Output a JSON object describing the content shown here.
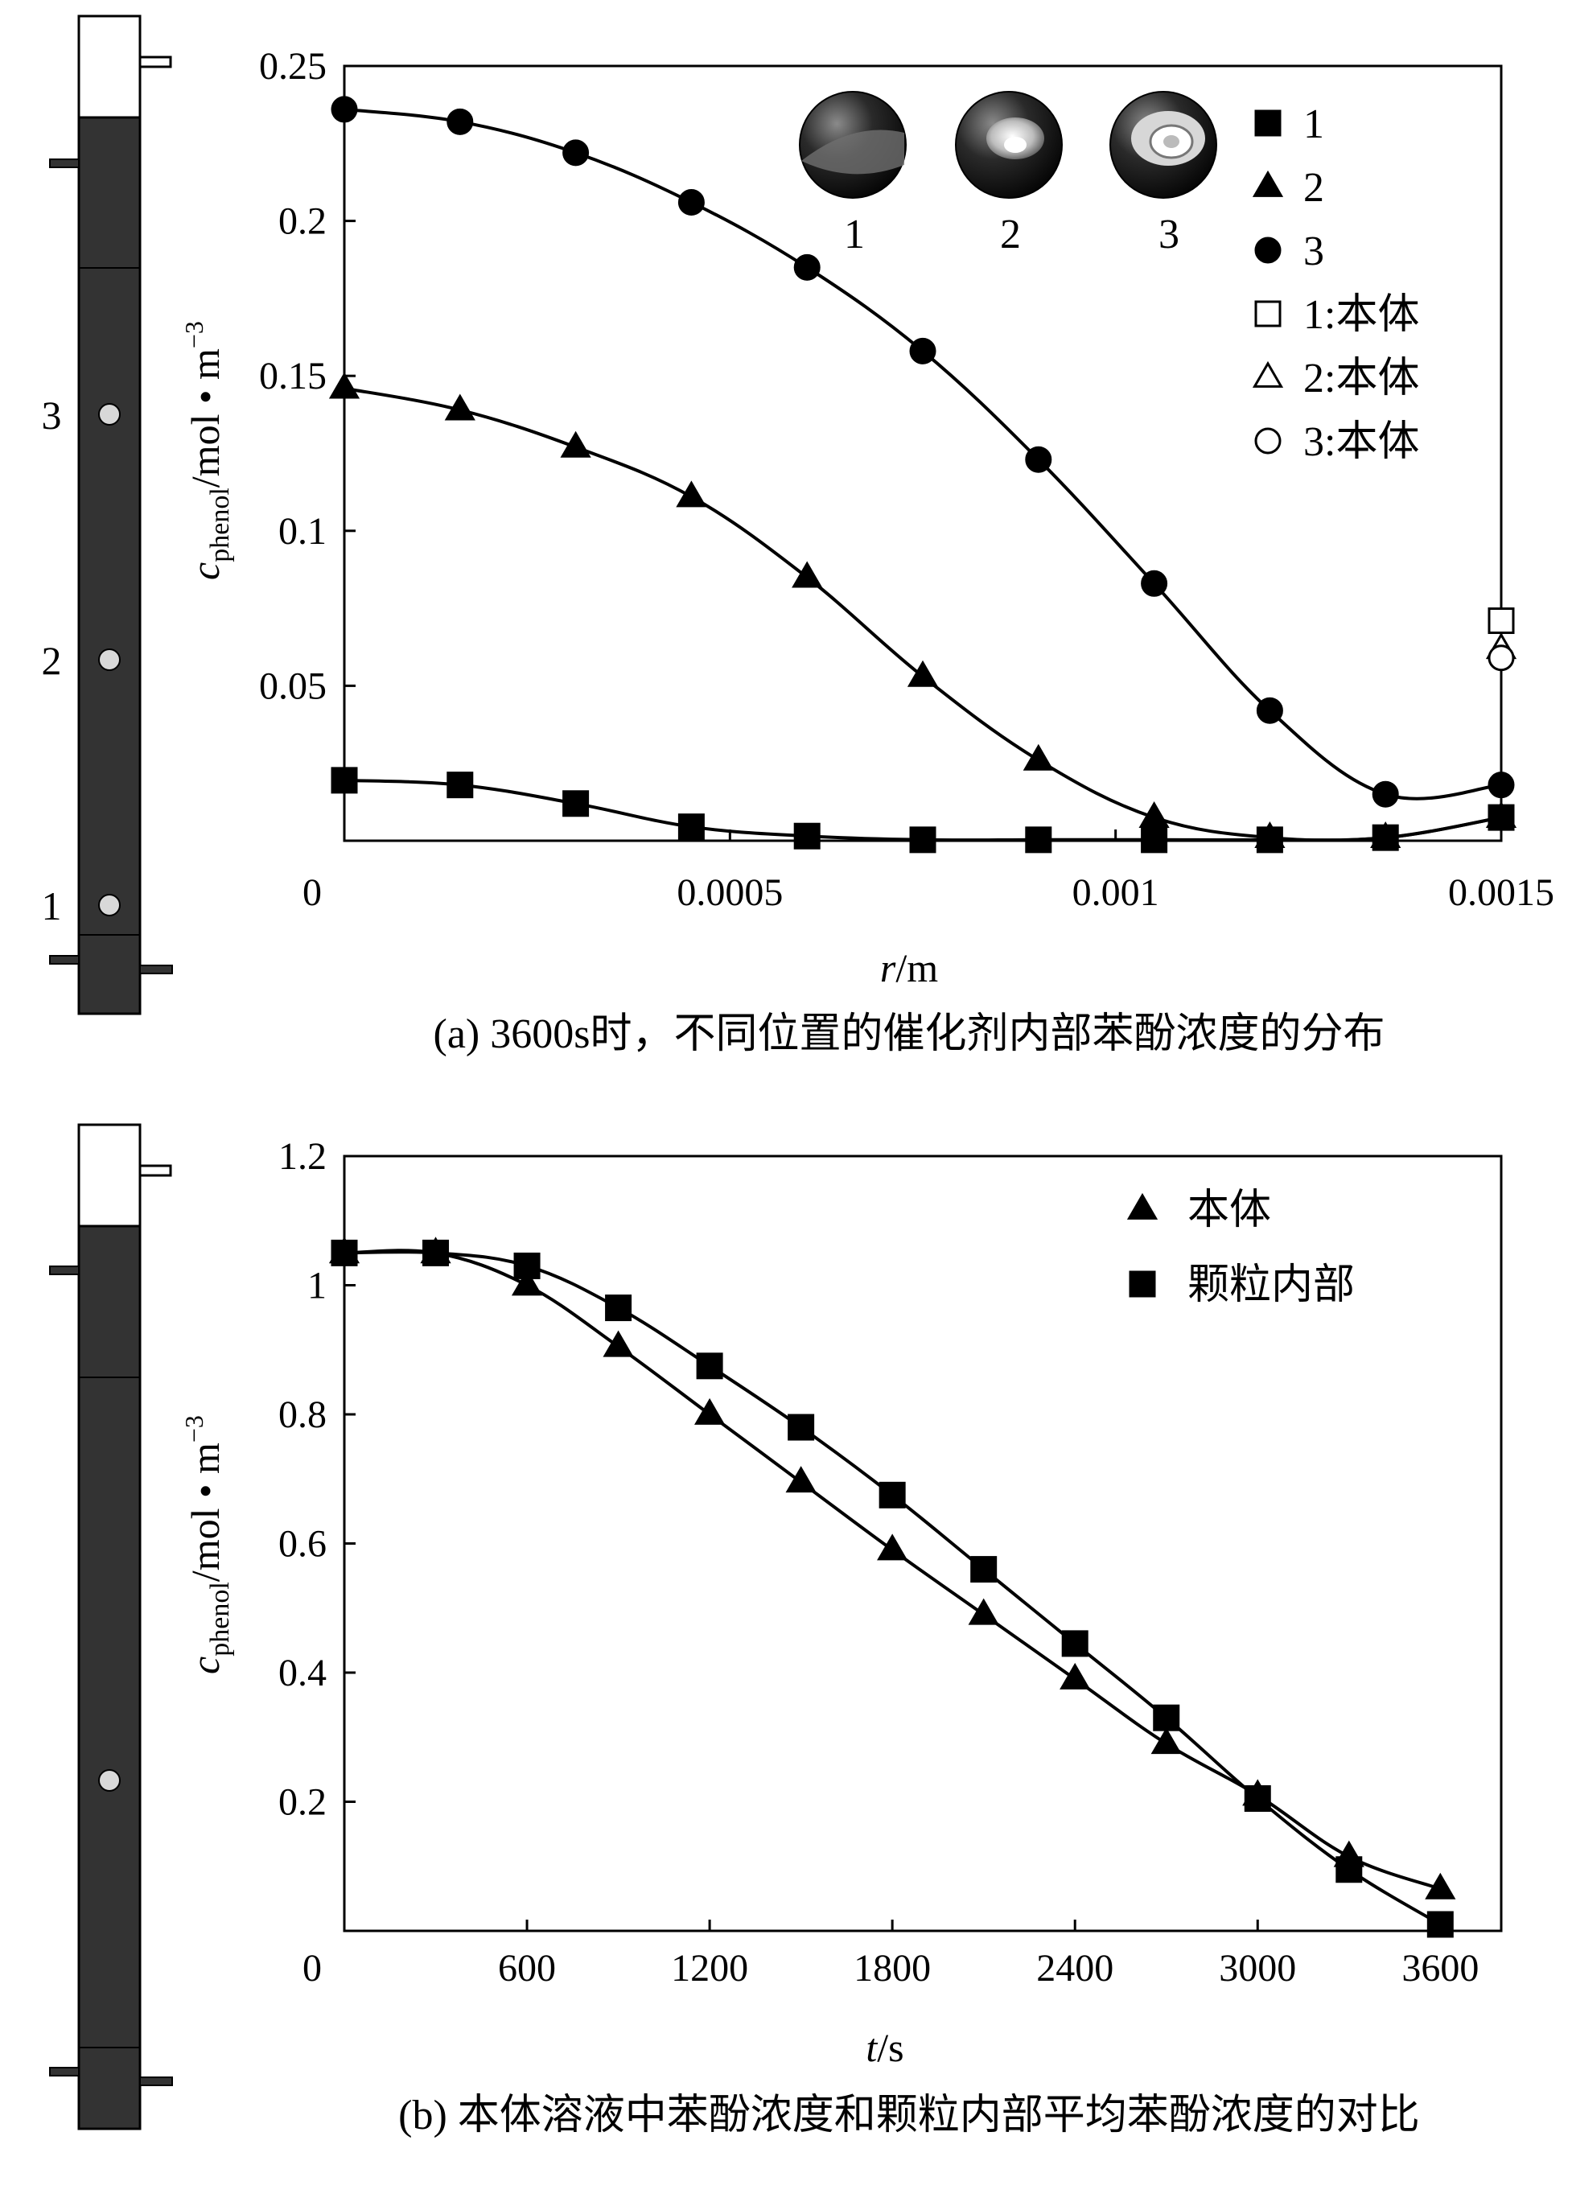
{
  "colors": {
    "column_fill": "#333333",
    "ink": "#000000",
    "port_fill": "#d8d8d8"
  },
  "columns": [
    {
      "labels": [
        "3",
        "2",
        "1"
      ]
    },
    {
      "labels": []
    }
  ],
  "chart_data": [
    {
      "type": "line",
      "caption": "(a) 3600s时，不同位置的催化剂内部苯酚浓度的分布",
      "xlabel_var": "r",
      "xlabel_unit": "/m",
      "ylabel_var": "c",
      "ylabel_sub": "phenol",
      "ylabel_unit": "/mol • m",
      "ylabel_sup": "−3",
      "xlim": [
        0,
        0.0015
      ],
      "ylim": [
        0,
        0.25
      ],
      "xticks": [
        0,
        0.0005,
        0.001,
        0.0015
      ],
      "xtick_labels": [
        "0",
        "0.0005",
        "0.001",
        "0.0015"
      ],
      "yticks": [
        0.05,
        0.1,
        0.15,
        0.2,
        0.25
      ],
      "ytick_labels": [
        "0.05",
        "0.1",
        "0.15",
        "0.2",
        "0.25"
      ],
      "inset_labels": [
        "1",
        "2",
        "3"
      ],
      "series": [
        {
          "name": "1",
          "marker": "square-filled",
          "x": [
            0,
            0.00015,
            0.0003,
            0.00045,
            0.0006,
            0.00075,
            0.0009,
            0.00105,
            0.0012,
            0.00135,
            0.0015
          ],
          "y": [
            0.0195,
            0.018,
            0.012,
            0.0045,
            0.0015,
            0.0003,
            0.0003,
            0.0003,
            0.0003,
            0.001,
            0.0075
          ]
        },
        {
          "name": "2",
          "marker": "triangle-filled",
          "x": [
            0,
            0.00015,
            0.0003,
            0.00045,
            0.0006,
            0.00075,
            0.0009,
            0.00105,
            0.0012,
            0.00135,
            0.0015
          ],
          "y": [
            0.146,
            0.139,
            0.127,
            0.111,
            0.085,
            0.053,
            0.026,
            0.0075,
            0.001,
            0.001,
            0.0075
          ]
        },
        {
          "name": "3",
          "marker": "circle-filled",
          "x": [
            0,
            0.00015,
            0.0003,
            0.00045,
            0.0006,
            0.00075,
            0.0009,
            0.00105,
            0.0012,
            0.00135,
            0.0015
          ],
          "y": [
            0.236,
            0.232,
            0.222,
            0.206,
            0.185,
            0.158,
            0.123,
            0.083,
            0.042,
            0.015,
            0.018
          ]
        },
        {
          "name": "1:本体",
          "marker": "square-open",
          "x": [
            0.0015
          ],
          "y": [
            0.071
          ]
        },
        {
          "name": "2:本体",
          "marker": "triangle-open",
          "x": [
            0.0015
          ],
          "y": [
            0.062
          ]
        },
        {
          "name": "3:本体",
          "marker": "circle-open",
          "x": [
            0.0015
          ],
          "y": [
            0.059
          ]
        }
      ]
    },
    {
      "type": "line",
      "caption": "(b) 本体溶液中苯酚浓度和颗粒内部平均苯酚浓度的对比",
      "xlabel_var": "t",
      "xlabel_unit": "/s",
      "ylabel_var": "c",
      "ylabel_sub": "phenol",
      "ylabel_unit": "/mol • m",
      "ylabel_sup": "−3",
      "xlim": [
        0,
        3800
      ],
      "ylim": [
        0,
        1.2
      ],
      "xticks": [
        0,
        600,
        1200,
        1800,
        2400,
        3000,
        3600
      ],
      "xtick_labels": [
        "0",
        "600",
        "1200",
        "1800",
        "2400",
        "3000",
        "3600"
      ],
      "yticks": [
        0.2,
        0.4,
        0.6,
        0.8,
        1,
        1.2
      ],
      "ytick_labels": [
        "0.2",
        "0.4",
        "0.6",
        "0.8",
        "1",
        "1.2"
      ],
      "series": [
        {
          "name": "本体",
          "marker": "triangle-filled",
          "x": [
            0,
            300,
            600,
            900,
            1200,
            1500,
            1800,
            2100,
            2400,
            2700,
            3000,
            3300,
            3600
          ],
          "y": [
            1.05,
            1.05,
            1.0,
            0.905,
            0.8,
            0.695,
            0.59,
            0.49,
            0.39,
            0.29,
            0.21,
            0.115,
            0.065
          ]
        },
        {
          "name": "颗粒内部",
          "marker": "square-filled",
          "x": [
            0,
            300,
            600,
            900,
            1200,
            1500,
            1800,
            2100,
            2400,
            2700,
            3000,
            3300,
            3600
          ],
          "y": [
            1.05,
            1.05,
            1.03,
            0.965,
            0.875,
            0.78,
            0.675,
            0.56,
            0.445,
            0.33,
            0.205,
            0.095,
            0.01
          ]
        }
      ]
    }
  ]
}
